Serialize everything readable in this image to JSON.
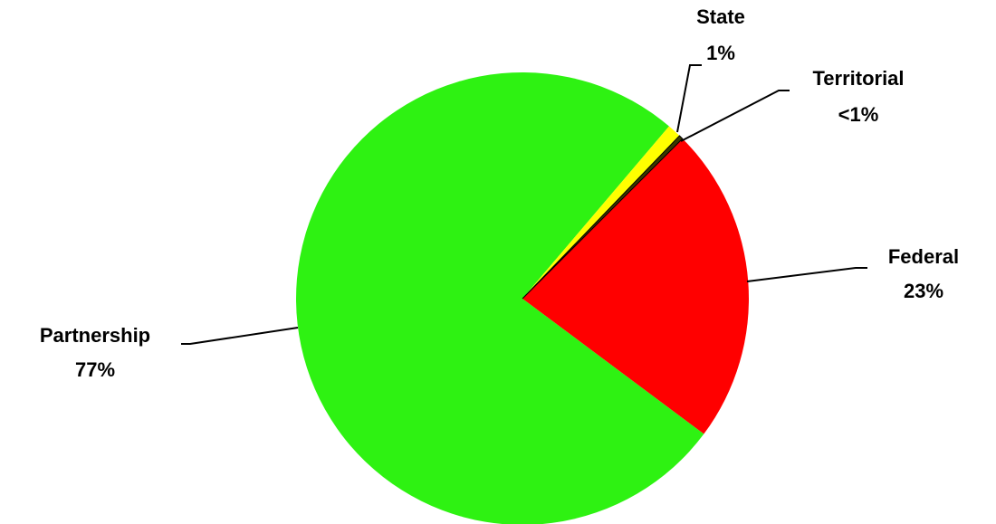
{
  "chart_data": {
    "type": "pie",
    "categories": [
      "Federal",
      "Partnership",
      "State",
      "Territorial"
    ],
    "values": [
      23,
      77,
      1,
      0.3
    ],
    "value_labels": [
      "23%",
      "77%",
      "1%",
      "<1%"
    ],
    "colors": [
      "#ff0000",
      "#2ef212",
      "#ffff00",
      "#3a3a00"
    ]
  }
}
